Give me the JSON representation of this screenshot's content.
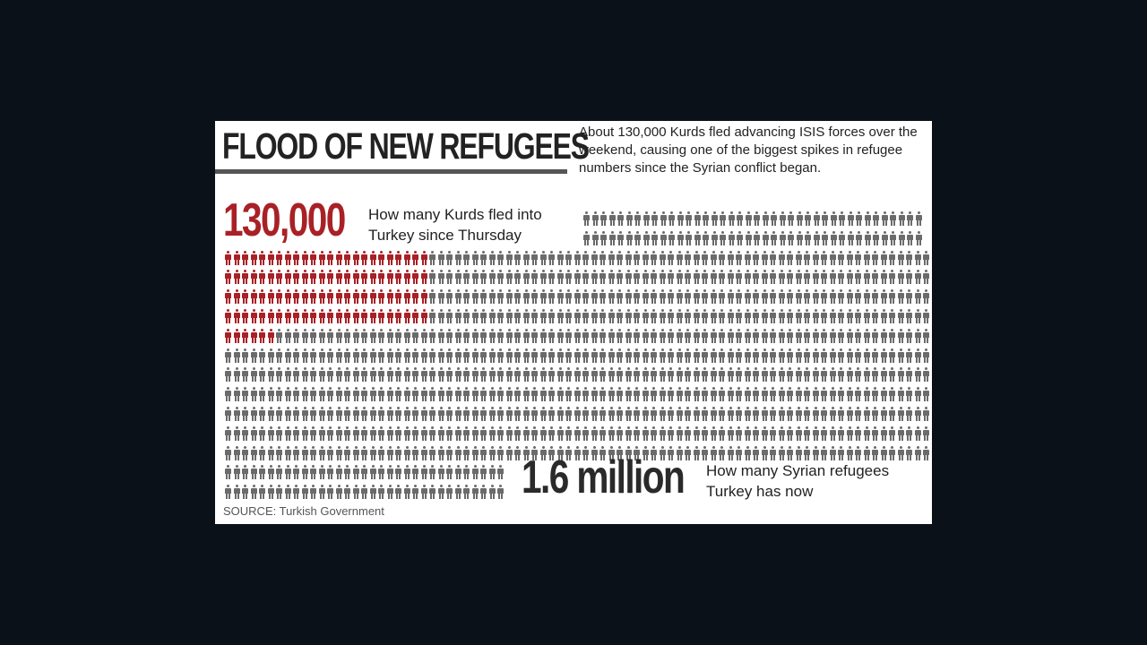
{
  "infographic": {
    "title": "FLOOD OF NEW REFUGEES",
    "intro": "About 130,000 Kurds fled advancing ISIS forces over the weekend, causing one of the biggest spikes in refugee numbers since the Syrian conflict began.",
    "new_refugees": {
      "figure": "130,000",
      "caption": "How many Kurds fled into Turkey since Thursday",
      "color": "#a82126"
    },
    "total_refugees": {
      "figure": "1.6 million",
      "caption": "How many Syrian refugees Turkey has now",
      "color": "#6b6b6b"
    },
    "source": "SOURCE: Turkish Government",
    "icon_name": "person-icon"
  }
}
